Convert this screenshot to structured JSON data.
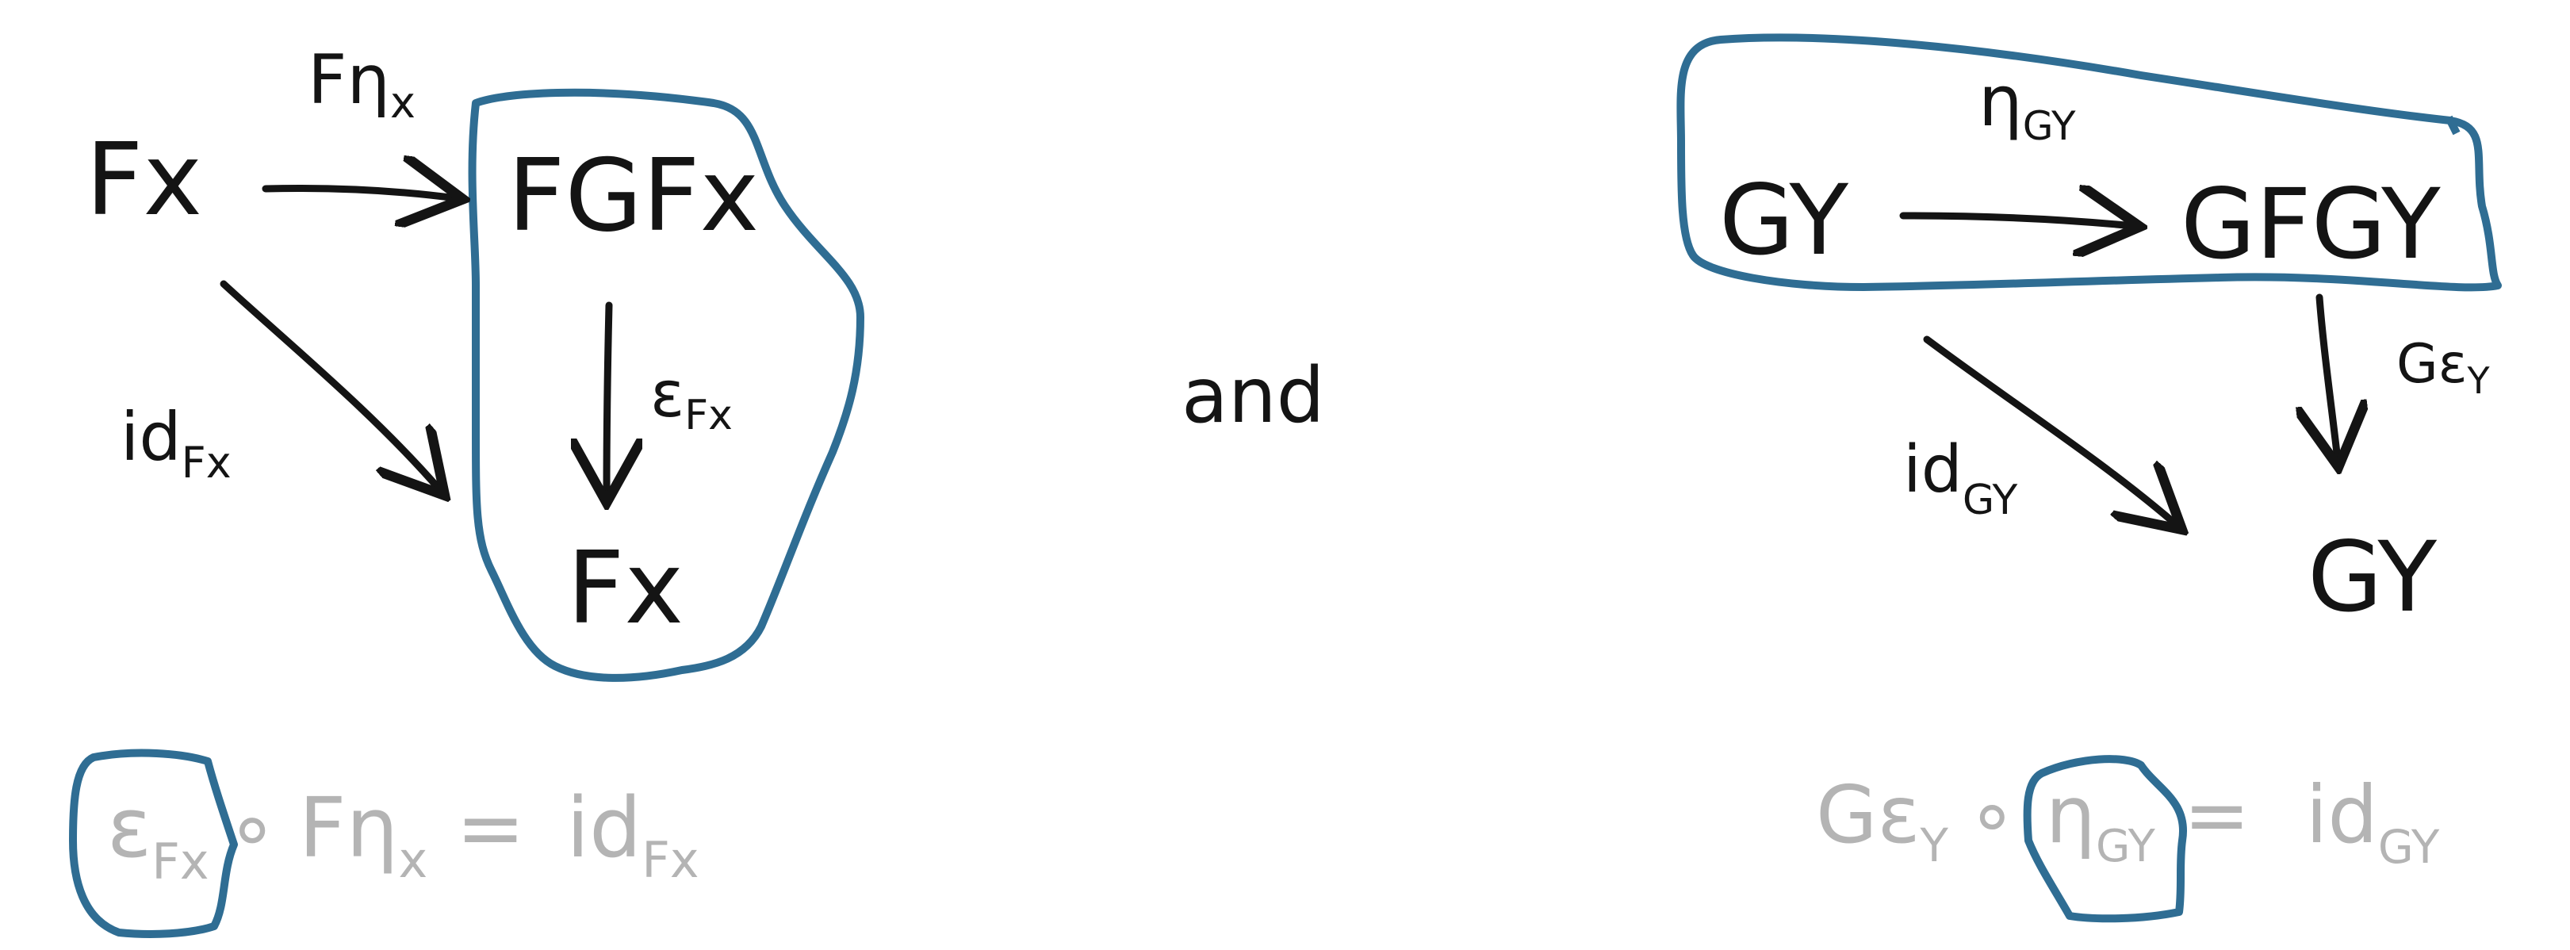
{
  "left_diagram": {
    "source": "Fx",
    "corner": "FGFx",
    "target": "Fx",
    "top_arrow": {
      "main": "F",
      "eta": "η",
      "sub": "x"
    },
    "down_arrow": {
      "main": "ε",
      "sub": "Fx"
    },
    "diag_arrow": {
      "main": "id",
      "sub": "Fx"
    }
  },
  "connector": "and",
  "right_diagram": {
    "source": "GY",
    "corner": "GFGY",
    "target": "GY",
    "top_arrow": {
      "main": "η",
      "sub": "GY"
    },
    "down_arrow": {
      "main": "Gε",
      "sub": "Y"
    },
    "diag_arrow": {
      "main": "id",
      "sub": "GY"
    }
  },
  "left_equation": {
    "eps": "ε",
    "eps_sub": "Fx",
    "compose": "∘",
    "F": "F",
    "eta": "η",
    "eta_sub": "x",
    "equals": "=",
    "id": "id",
    "id_sub": "Fx"
  },
  "right_equation": {
    "G_eps": "Gε",
    "G_eps_sub": "Y",
    "compose": "∘",
    "eta": "η",
    "eta_sub": "GY",
    "equals": "=",
    "id": "id",
    "id_sub": "GY"
  },
  "colors": {
    "ink": "#141414",
    "highlight": "#2f6d93",
    "faint": "#b4b4b4"
  }
}
